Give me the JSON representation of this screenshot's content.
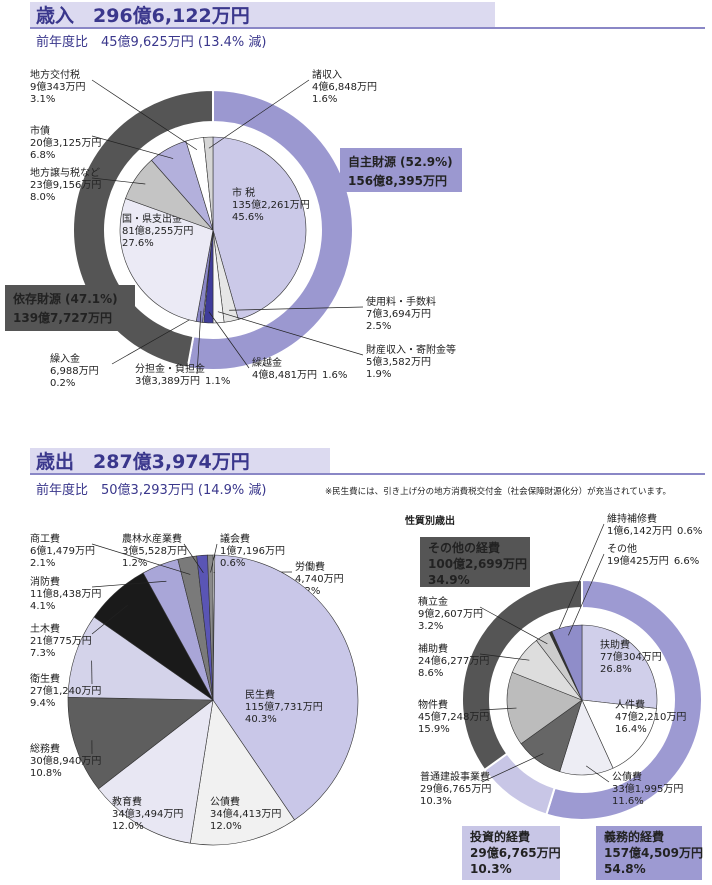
{
  "chart_data": [
    {
      "type": "pie",
      "title": "歳入　296億6,122万円",
      "subtitle": "前年度比　45億9,625万円 (13.4% 減)",
      "categories": [
        "市 税",
        "使用料・手数料",
        "財産収入・寄附金等",
        "繰越金",
        "繰入金",
        "分担金・負担金",
        "国・県支出金",
        "地方譲与税など",
        "市債",
        "地方交付税",
        "諸収入"
      ],
      "amounts": [
        "135億2,261万円",
        "7億3,694万円",
        "5億3,582万円",
        "4億8,481万円",
        "6,988万円",
        "3億3,389万円",
        "81億8,255万円",
        "23億9,156万円",
        "20億3,125万円",
        "9億343万円",
        "4億6,848万円"
      ],
      "values": [
        45.6,
        2.5,
        1.9,
        1.6,
        0.2,
        1.1,
        27.6,
        8.0,
        6.8,
        3.1,
        1.6
      ],
      "value_labels": [
        "45.6%",
        "2.5%",
        "1.9%",
        "1.6%",
        "0.2%",
        "1.1%",
        "27.6%",
        "8.0%",
        "6.8%",
        "3.1%",
        "1.6%"
      ],
      "colors": [
        "#cbc9e8",
        "#e6e6e6",
        "#f7f7f7",
        "#3f3c9a",
        "#ffffff",
        "#8a87c6",
        "#ebeaf5",
        "#c4c4c4",
        "#b3b0dc",
        "#ffffff",
        "#d6d6d6"
      ],
      "groups": {
        "categories": [
          "自主財源",
          "依存財源"
        ],
        "amounts": [
          "156億8,395万円",
          "139億7,727万円"
        ],
        "values": [
          52.9,
          47.1
        ],
        "value_labels": [
          "(52.9%)",
          "(47.1%)"
        ],
        "colors": [
          "#9b98d0",
          "#555555"
        ]
      }
    },
    {
      "type": "pie",
      "title": "歳出　287億3,974万円",
      "subtitle": "前年度比　50億3,293万円 (14.9% 減)",
      "note": "※民生費には、引き上げ分の地方消費税交付金（社会保障財源化分）が充当されています。",
      "categories": [
        "労働費",
        "民生費",
        "公債費",
        "教育費",
        "総務費",
        "衛生費",
        "土木費",
        "消防費",
        "商工費",
        "農林水産業費",
        "議会費"
      ],
      "amounts": [
        "4,740万円",
        "115億7,731万円",
        "34億4,413万円",
        "34億3,494万円",
        "30億8,940万円",
        "27億1,240万円",
        "21億775万円",
        "11億8,438万円",
        "6億1,479万円",
        "3億5,528万円",
        "1億7,196万円"
      ],
      "values": [
        0.2,
        40.3,
        12.0,
        12.0,
        10.8,
        9.4,
        7.3,
        4.1,
        2.1,
        1.2,
        0.6
      ],
      "value_labels": [
        "0.2%",
        "40.3%",
        "12.0%",
        "12.0%",
        "10.8%",
        "9.4%",
        "7.3%",
        "4.1%",
        "2.1%",
        "1.2%",
        "0.6%"
      ],
      "colors": [
        "#ffffff",
        "#c9c7e8",
        "#f1f1f1",
        "#e8e7f3",
        "#5e5e5e",
        "#d4d3ea",
        "#1a1a1a",
        "#a9a6d8",
        "#7a7a7a",
        "#5a55b5",
        "#8a8a8a"
      ]
    },
    {
      "type": "pie",
      "title": "性質別歳出",
      "categories": [
        "扶助費",
        "人件費",
        "公債費",
        "普通建設事業費",
        "物件費",
        "補助費",
        "積立金",
        "維持補修費",
        "その他"
      ],
      "amounts": [
        "77億304万円",
        "47億2,210万円",
        "33億1,995万円",
        "29億6,765万円",
        "45億7,248万円",
        "24億6,277万円",
        "9億2,607万円",
        "1億6,142万円",
        "19億425万円"
      ],
      "values": [
        26.8,
        16.4,
        11.6,
        10.3,
        15.9,
        8.6,
        3.2,
        0.6,
        6.6
      ],
      "value_labels": [
        "26.8%",
        "16.4%",
        "11.6%",
        "10.3%",
        "15.9%",
        "8.6%",
        "3.2%",
        "0.6%",
        "6.6%"
      ],
      "colors": [
        "#d0cfea",
        "#ffffff",
        "#ededf4",
        "#666666",
        "#bcbcbc",
        "#dddddd",
        "#cccccc",
        "#333333",
        "#8f8dc9"
      ],
      "groups": {
        "categories": [
          "義務的経費",
          "投資的経費",
          "その他の経費"
        ],
        "amounts": [
          "157億4,509万円",
          "29億6,765万円",
          "100億2,699万円"
        ],
        "values": [
          54.8,
          10.3,
          34.9
        ],
        "value_labels": [
          "54.8%",
          "10.3%",
          "34.9%"
        ],
        "colors": [
          "#9d9ad2",
          "#c8c6e6",
          "#555555"
        ]
      }
    }
  ]
}
